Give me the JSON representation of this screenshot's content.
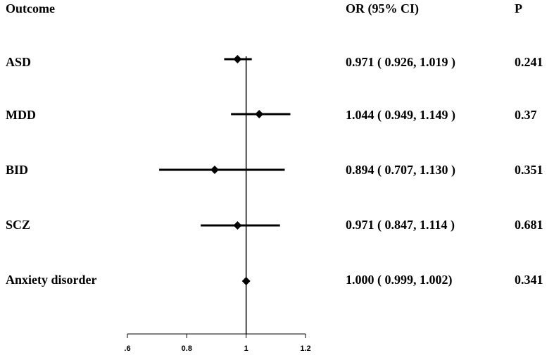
{
  "headers": {
    "outcome": "Outcome",
    "or": "OR (95% CI)",
    "p": "P"
  },
  "rows": [
    {
      "label": "ASD",
      "or_text": "0.971 ( 0.926, 1.019 )",
      "p": "0.241"
    },
    {
      "label": "MDD",
      "or_text": "1.044 ( 0.949, 1.149 )",
      "p": "0.37"
    },
    {
      "label": "BID",
      "or_text": "0.894 ( 0.707, 1.130 )",
      "p": "0.351"
    },
    {
      "label": "SCZ",
      "or_text": "0.971 ( 0.847, 1.114 )",
      "p": "0.681"
    },
    {
      "label": "Anxiety disorder",
      "or_text": "1.000 ( 0.999, 1.002)",
      "p": "0.341"
    }
  ],
  "chart_data": {
    "type": "forest",
    "reference_line": 1,
    "xlim": [
      0.6,
      1.2
    ],
    "x_ticks": [
      ".6",
      "0.8",
      "1",
      "1.2"
    ],
    "tick_values": [
      0.6,
      0.8,
      1.0,
      1.2
    ],
    "points": [
      {
        "label": "ASD",
        "or": 0.971,
        "lower": 0.926,
        "upper": 1.019
      },
      {
        "label": "MDD",
        "or": 1.044,
        "lower": 0.949,
        "upper": 1.149
      },
      {
        "label": "BID",
        "or": 0.894,
        "lower": 0.707,
        "upper": 1.13
      },
      {
        "label": "SCZ",
        "or": 0.971,
        "lower": 0.847,
        "upper": 1.114
      },
      {
        "label": "Anxiety disorder",
        "or": 1.0,
        "lower": 0.999,
        "upper": 1.002
      }
    ]
  }
}
